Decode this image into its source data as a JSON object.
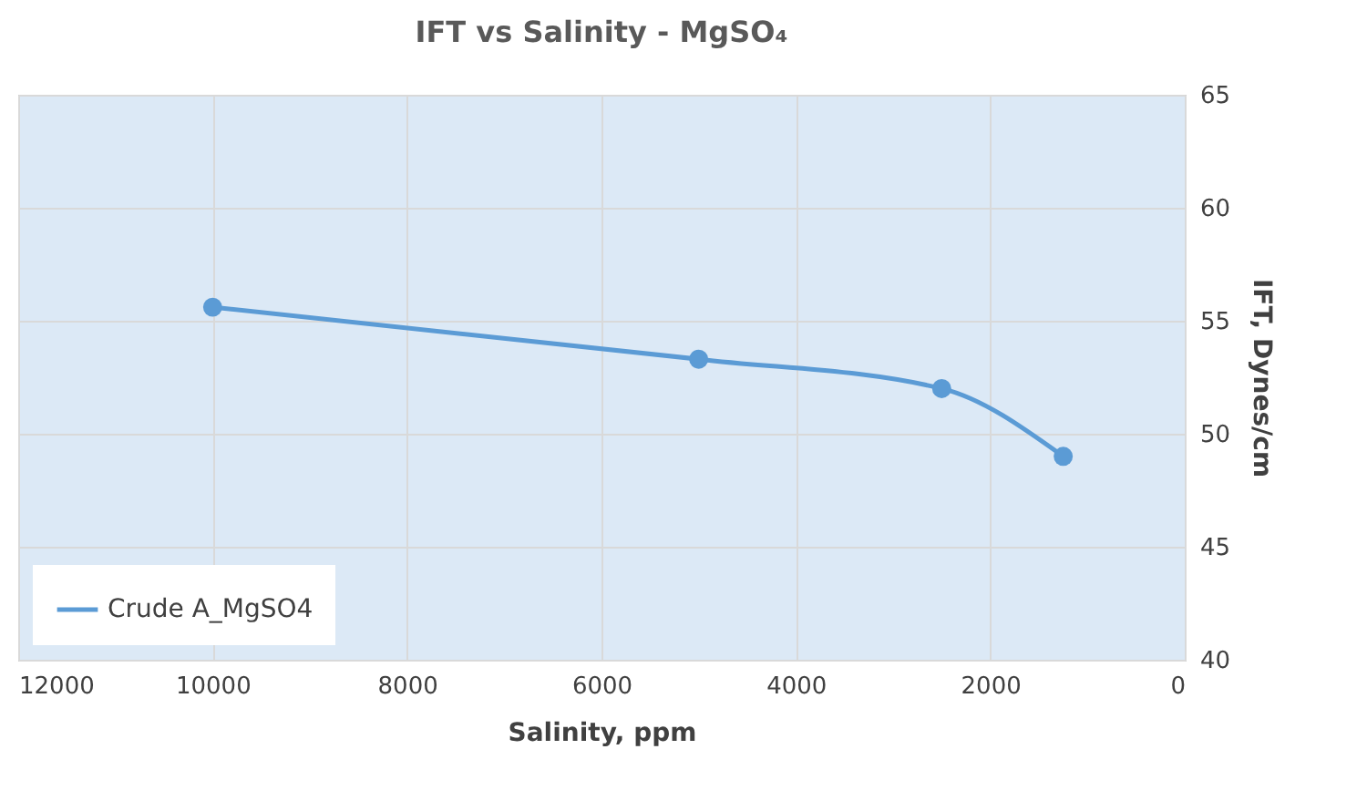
{
  "chart_data": {
    "type": "line",
    "title": "IFT vs Salinity - MgSO₄",
    "xlabel": "Salinity, ppm",
    "ylabel": "IFT, Dynes/cm",
    "x": [
      10000,
      5000,
      2500,
      1250
    ],
    "series": [
      {
        "name": "Crude A_MgSO4",
        "color": "#5b9bd5",
        "values": [
          55.6,
          53.3,
          52.0,
          49.0
        ]
      }
    ],
    "xlim": [
      12000,
      0
    ],
    "xticks": [
      12000,
      10000,
      8000,
      6000,
      4000,
      2000,
      0
    ],
    "ylim": [
      40,
      65
    ],
    "yticks": [
      40,
      45,
      50,
      55,
      60,
      65
    ],
    "grid": true,
    "legend": "bottom left",
    "marker": "circle",
    "line_style": "solid"
  }
}
